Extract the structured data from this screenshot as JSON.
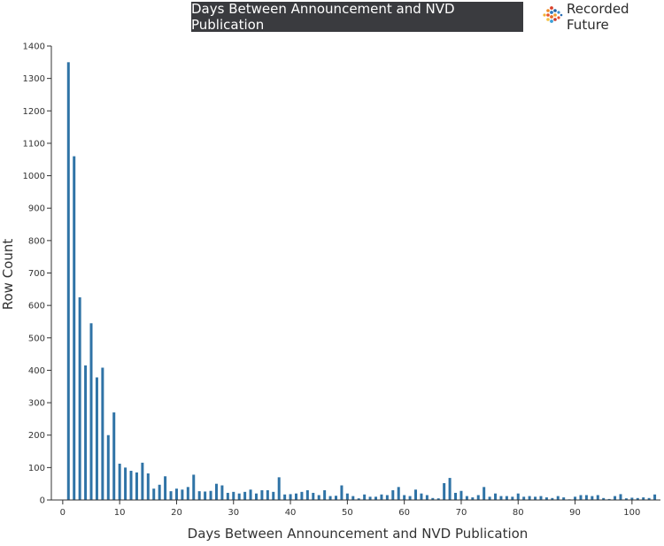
{
  "header": {
    "title": "Days Between Announcement and NVD Publication",
    "brand": "Recorded Future",
    "brand_icon": "recorded-future-logo-icon"
  },
  "colors": {
    "bar": "#2f73a6",
    "title_bg": "#3a3b3f",
    "axis": "#333333"
  },
  "chart_data": {
    "type": "bar",
    "title": "Days Between Announcement and NVD Publication",
    "xlabel": "Days Between Announcement and NVD Publication",
    "ylabel": "Row Count",
    "xlim": [
      -2,
      105
    ],
    "ylim": [
      0,
      1400
    ],
    "x_ticks": [
      0,
      10,
      20,
      30,
      40,
      50,
      60,
      70,
      80,
      90,
      100
    ],
    "y_ticks": [
      0,
      100,
      200,
      300,
      400,
      500,
      600,
      700,
      800,
      900,
      1000,
      1100,
      1200,
      1300,
      1400
    ],
    "grid": false,
    "x": [
      1,
      2,
      3,
      4,
      5,
      6,
      7,
      8,
      9,
      10,
      11,
      12,
      13,
      14,
      15,
      16,
      17,
      18,
      19,
      20,
      21,
      22,
      23,
      24,
      25,
      26,
      27,
      28,
      29,
      30,
      31,
      32,
      33,
      34,
      35,
      36,
      37,
      38,
      39,
      40,
      41,
      42,
      43,
      44,
      45,
      46,
      47,
      48,
      49,
      50,
      51,
      52,
      53,
      54,
      55,
      56,
      57,
      58,
      59,
      60,
      61,
      62,
      63,
      64,
      65,
      66,
      67,
      68,
      69,
      70,
      71,
      72,
      73,
      74,
      75,
      76,
      77,
      78,
      79,
      80,
      81,
      82,
      83,
      84,
      85,
      86,
      87,
      88,
      89,
      90,
      91,
      92,
      93,
      94,
      95,
      96,
      97,
      98,
      99,
      100,
      101,
      102,
      103,
      104
    ],
    "values": [
      1350,
      1060,
      625,
      415,
      545,
      378,
      408,
      200,
      270,
      112,
      100,
      90,
      85,
      115,
      82,
      35,
      47,
      73,
      27,
      35,
      32,
      40,
      78,
      27,
      26,
      28,
      50,
      45,
      22,
      25,
      20,
      25,
      32,
      20,
      30,
      30,
      25,
      70,
      17,
      18,
      20,
      25,
      30,
      22,
      15,
      30,
      12,
      13,
      45,
      20,
      12,
      5,
      17,
      10,
      10,
      17,
      15,
      30,
      40,
      15,
      12,
      32,
      20,
      15,
      6,
      5,
      52,
      68,
      22,
      28,
      12,
      8,
      15,
      40,
      10,
      20,
      12,
      12,
      10,
      20,
      10,
      12,
      10,
      12,
      8,
      6,
      12,
      8,
      2,
      10,
      15,
      15,
      12,
      15,
      6,
      3,
      12,
      18,
      5,
      7,
      6,
      8,
      6,
      17
    ]
  }
}
